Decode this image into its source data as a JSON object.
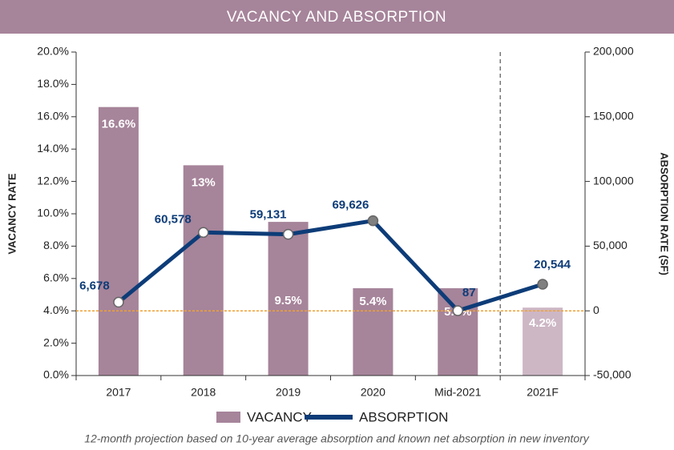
{
  "chart_data": {
    "type": "bar_line",
    "title": "VACANCY AND ABSORPTION",
    "y_label": "VACANCY RATE",
    "y2_label": "ABSORPTION RATE (SF)",
    "footnote": "12-month projection based on 10-year average absorption and known net absorption in new inventory",
    "categories": [
      "2017",
      "2018",
      "2019",
      "2020",
      "Mid-2021",
      "2021F"
    ],
    "series": [
      {
        "name": "VACANCY",
        "type": "bar",
        "colors": [
          "#a6849a",
          "#a6849a",
          "#a6849a",
          "#a6849a",
          "#a6849a",
          "#cdb7c5"
        ],
        "values": [
          16.6,
          13,
          9.5,
          5.4,
          5.4,
          4.2
        ],
        "value_labels": [
          "16.6%",
          "13%",
          "9.5%",
          "5.4%",
          "5.4%",
          "4.2%"
        ]
      },
      {
        "name": "ABSORPTION",
        "type": "line",
        "axis": "y2",
        "color": "#0d3c78",
        "marker_fills": [
          "#ffffff",
          "#ffffff",
          "#ffffff",
          "#808080",
          "#ffffff",
          "#808080"
        ],
        "values": [
          6678,
          60578,
          59131,
          69626,
          87,
          20544
        ],
        "value_labels": [
          "6,678",
          "60,578",
          "59,131",
          "69,626",
          "87",
          "20,544"
        ]
      }
    ],
    "ylim": [
      0,
      20
    ],
    "yticks": [
      {
        "value": 0,
        "label": "0.0%"
      },
      {
        "value": 2,
        "label": "2.0%"
      },
      {
        "value": 4,
        "label": "4.0%"
      },
      {
        "value": 6,
        "label": "6.0%"
      },
      {
        "value": 8,
        "label": "8.0%"
      },
      {
        "value": 10,
        "label": "10.0%"
      },
      {
        "value": 12,
        "label": "12.0%"
      },
      {
        "value": 14,
        "label": "14.0%"
      },
      {
        "value": 16,
        "label": "16.0%"
      },
      {
        "value": 18,
        "label": "18.0%"
      },
      {
        "value": 20,
        "label": "20.0%"
      }
    ],
    "y2lim": [
      -50000,
      200000
    ],
    "y2ticks": [
      {
        "value": -50000,
        "label": "-50,000"
      },
      0,
      {
        "value": 50000,
        "label": "50,000"
      },
      {
        "value": 100000,
        "label": "100,000"
      },
      {
        "value": 150000,
        "label": "150,000"
      },
      {
        "value": 200000,
        "label": "200,000"
      }
    ]
  }
}
